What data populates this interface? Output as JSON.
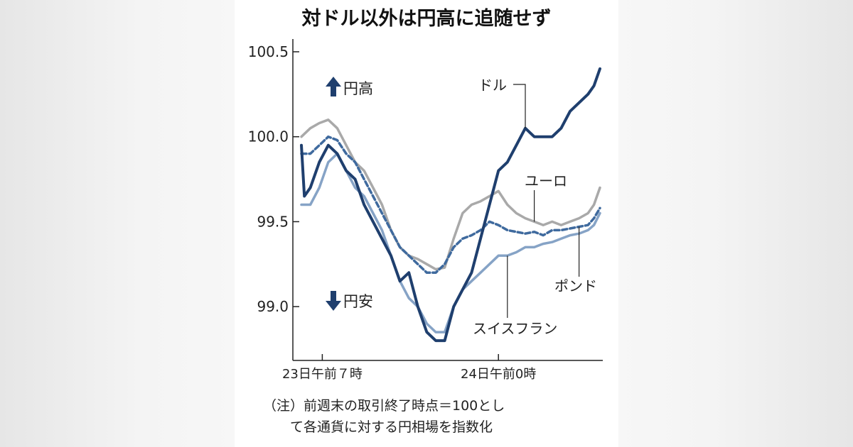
{
  "colors": {
    "dollar": "#1f3f6e",
    "euro": "#a9a9a9",
    "pound": "#3f6a9e",
    "swiss": "#86a3c6",
    "axis": "#222222",
    "arrow": "#1f3f6e"
  },
  "chart_data": {
    "type": "line",
    "title": "対ドル以外は円高に追随せず",
    "xlabel": "",
    "ylabel": "",
    "xlim": [
      0,
      100
    ],
    "ylim": [
      98.7,
      100.55
    ],
    "y_ticks": [
      {
        "value": 100.5,
        "label": "100.5"
      },
      {
        "value": 100.0,
        "label": "100.0"
      },
      {
        "value": 99.5,
        "label": "99.5"
      },
      {
        "value": 99.0,
        "label": "99.0"
      }
    ],
    "x_ticks": [
      {
        "x": 7,
        "label": "23日午前７時"
      },
      {
        "x": 66,
        "label": "24日午前0時"
      }
    ],
    "grid": false,
    "annotations": {
      "up": "円高",
      "down": "円安"
    },
    "series": [
      {
        "name": "ユーロ",
        "color_key": "euro",
        "dashed": false,
        "x": [
          0,
          3,
          6,
          9,
          12,
          15,
          18,
          21,
          24,
          27,
          30,
          33,
          36,
          39,
          42,
          45,
          48,
          51,
          54,
          57,
          60,
          63,
          66,
          69,
          72,
          75,
          78,
          81,
          84,
          87,
          90,
          93,
          96,
          98,
          100
        ],
        "values": [
          100.0,
          100.05,
          100.08,
          100.1,
          100.05,
          99.95,
          99.85,
          99.8,
          99.7,
          99.6,
          99.45,
          99.35,
          99.3,
          99.28,
          99.25,
          99.22,
          99.23,
          99.4,
          99.55,
          99.6,
          99.62,
          99.65,
          99.68,
          99.6,
          99.55,
          99.52,
          99.5,
          99.48,
          99.5,
          99.48,
          99.5,
          99.52,
          99.55,
          99.6,
          99.7
        ]
      },
      {
        "name": "ドル",
        "color_key": "dollar",
        "dashed": false,
        "x": [
          0,
          1,
          3,
          6,
          9,
          12,
          15,
          18,
          21,
          24,
          27,
          30,
          33,
          36,
          39,
          42,
          45,
          48,
          51,
          54,
          57,
          60,
          63,
          66,
          69,
          72,
          75,
          78,
          81,
          84,
          87,
          90,
          93,
          96,
          98,
          100
        ],
        "values": [
          99.95,
          99.65,
          99.7,
          99.85,
          99.95,
          99.9,
          99.8,
          99.75,
          99.6,
          99.5,
          99.4,
          99.3,
          99.15,
          99.2,
          99.0,
          98.85,
          98.8,
          98.8,
          99.0,
          99.1,
          99.2,
          99.4,
          99.6,
          99.8,
          99.85,
          99.95,
          100.05,
          100.0,
          100.0,
          100.0,
          100.05,
          100.15,
          100.2,
          100.25,
          100.3,
          100.4
        ]
      },
      {
        "name": "ポンド",
        "color_key": "pound",
        "dashed": true,
        "x": [
          0,
          3,
          6,
          9,
          12,
          15,
          18,
          21,
          24,
          27,
          30,
          33,
          36,
          39,
          42,
          45,
          48,
          51,
          54,
          57,
          60,
          63,
          66,
          69,
          72,
          75,
          78,
          81,
          84,
          87,
          90,
          93,
          96,
          98,
          100
        ],
        "values": [
          99.9,
          99.9,
          99.95,
          100.0,
          99.98,
          99.9,
          99.85,
          99.75,
          99.65,
          99.55,
          99.45,
          99.35,
          99.3,
          99.25,
          99.2,
          99.2,
          99.25,
          99.35,
          99.4,
          99.42,
          99.45,
          99.5,
          99.48,
          99.45,
          99.44,
          99.43,
          99.44,
          99.42,
          99.45,
          99.45,
          99.46,
          99.47,
          99.48,
          99.52,
          99.58
        ]
      },
      {
        "name": "スイスフラン",
        "color_key": "swiss",
        "dashed": false,
        "x": [
          0,
          3,
          6,
          9,
          12,
          15,
          18,
          21,
          24,
          27,
          30,
          33,
          36,
          39,
          42,
          45,
          48,
          51,
          54,
          57,
          60,
          63,
          66,
          69,
          72,
          75,
          78,
          81,
          84,
          87,
          90,
          93,
          96,
          98,
          100
        ],
        "values": [
          99.6,
          99.6,
          99.7,
          99.85,
          99.9,
          99.8,
          99.7,
          99.65,
          99.55,
          99.45,
          99.3,
          99.15,
          99.05,
          99.0,
          98.9,
          98.85,
          98.85,
          99.0,
          99.1,
          99.15,
          99.2,
          99.25,
          99.3,
          99.3,
          99.32,
          99.35,
          99.35,
          99.37,
          99.38,
          99.4,
          99.42,
          99.43,
          99.45,
          99.48,
          99.55
        ]
      }
    ],
    "series_labels": [
      {
        "key": "dollar",
        "text": "ドル"
      },
      {
        "key": "euro",
        "text": "ユーロ"
      },
      {
        "key": "pound",
        "text": "ポンド"
      },
      {
        "key": "swiss",
        "text": "スイスフラン"
      }
    ]
  },
  "note": {
    "line1": "（注）前週末の取引終了時点＝100とし",
    "line2": "て各通貨に対する円相場を指数化"
  }
}
